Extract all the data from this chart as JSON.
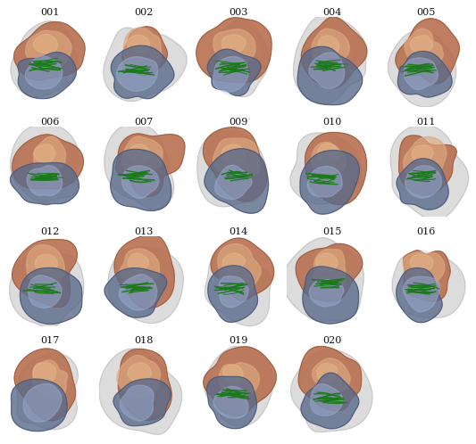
{
  "labels_row1": [
    "001",
    "002",
    "003",
    "004",
    "005"
  ],
  "labels_row2": [
    "006",
    "007",
    "009",
    "010",
    "011"
  ],
  "labels_row3": [
    "012",
    "013",
    "014",
    "015",
    "016"
  ],
  "labels_row4": [
    "017",
    "018",
    "019",
    "020",
    null
  ],
  "nrows": 4,
  "ncols": 5,
  "bg_color": "#ffffff",
  "label_fontsize": 8,
  "label_color": "#111111",
  "fig_width": 5.33,
  "fig_height": 4.98,
  "dpi": 100,
  "gray_bg": "#c8c8c8",
  "gray_bg2": "#d8d8d8",
  "orange_dark": "#b87050",
  "orange_mid": "#cc8860",
  "orange_light": "#dda880",
  "blue_dark": "#5a6a8a",
  "blue_mid": "#7080a8",
  "blue_light": "#9aaccf",
  "green_bundle": "#1a7a1a",
  "green_light": "#2d9a2d"
}
